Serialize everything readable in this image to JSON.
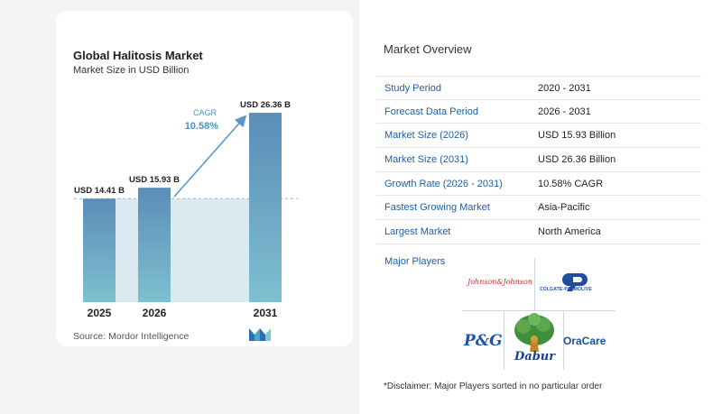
{
  "chart_data": {
    "type": "bar",
    "title": "Global Halitosis Market",
    "subtitle": "Market Size in USD Billion",
    "categories": [
      "2025",
      "2026",
      "2031"
    ],
    "values": [
      14.41,
      15.93,
      26.36
    ],
    "value_labels": [
      "USD 14.41 B",
      "USD 15.93 B",
      "USD 26.36 B"
    ],
    "cagr_label": "CAGR",
    "cagr_value": "10.58%",
    "ylim": [
      0,
      28
    ],
    "grid": false,
    "colors": {
      "bar_top": "#5b8db8",
      "bar_bottom": "#7ec0d0",
      "area": "#dde9f1",
      "arrow": "#5b97c2",
      "cagr": "#4a90c2"
    }
  },
  "source": "Source:  Mordor Intelligence",
  "source_logo_icon": "mordor-intelligence-logo-icon",
  "overview": {
    "title": "Market Overview",
    "rows": [
      {
        "label": "Study Period",
        "value": "2020 - 2031"
      },
      {
        "label": "Forecast Data Period",
        "value": "2026 - 2031"
      },
      {
        "label": "Market Size (2026)",
        "value": "USD 15.93 Billion"
      },
      {
        "label": "Market Size (2031)",
        "value": "USD 26.36 Billion"
      },
      {
        "label": "Growth Rate (2026 - 2031)",
        "value": "10.58% CAGR"
      },
      {
        "label": "Fastest Growing Market",
        "value": "Asia-Pacific"
      },
      {
        "label": "Largest Market",
        "value": "North America"
      }
    ],
    "players_label": "Major Players",
    "players": [
      "Johnson & Johnson",
      "Colgate-Palmolive",
      "P&G",
      "Dabur",
      "OraCare"
    ]
  },
  "logos": {
    "jj": "Johnson&Johnson",
    "cp": "COLGATE-PALMOLIVE",
    "pg": "P&G",
    "dabur": "Dabur",
    "oracare": "OraCare"
  },
  "disclaimer": "*Disclaimer: Major Players sorted in no particular order"
}
